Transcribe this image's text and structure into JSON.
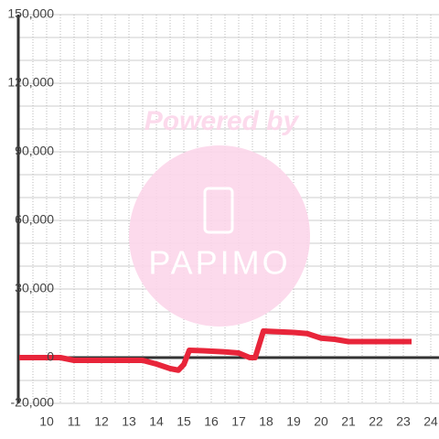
{
  "chart_data": {
    "type": "line",
    "watermark": {
      "heading": "Powered by",
      "logo_text": "PAPIMO"
    },
    "x": [
      9,
      10.5,
      11,
      13.5,
      14,
      14.5,
      14.8,
      15,
      15.2,
      15.7,
      16.5,
      17,
      17.4,
      17.6,
      17.9,
      19,
      19.5,
      20,
      20.5,
      21,
      23.3
    ],
    "series": [
      {
        "color": "#e8253a",
        "values": [
          0,
          0,
          -1200,
          -1200,
          -2800,
          -4800,
          -5500,
          -3000,
          3200,
          3000,
          2500,
          2000,
          0,
          0,
          11600,
          11000,
          10500,
          8500,
          8000,
          7000,
          7000
        ]
      }
    ],
    "xlim": [
      9,
      24.3
    ],
    "ylim": [
      -20000,
      150000
    ],
    "xticks": [
      10,
      11,
      12,
      13,
      14,
      15,
      16,
      17,
      18,
      19,
      20,
      21,
      22,
      23,
      24
    ],
    "yticks": [
      {
        "value": -20000,
        "label": "-20,000"
      },
      0,
      {
        "value": 30000,
        "label": "30,000"
      },
      {
        "value": 60000,
        "label": "60,000"
      },
      {
        "value": 90000,
        "label": "90,000"
      },
      {
        "value": 120000,
        "label": "120,000"
      },
      {
        "value": 150000,
        "label": "150,000"
      }
    ],
    "minor_yticks": [
      -10000,
      10000,
      20000,
      40000,
      50000,
      70000,
      80000,
      100000,
      110000,
      130000,
      140000
    ],
    "minor_xticks": [
      9.5,
      10.5,
      11.5,
      12.5,
      13.5,
      14.5,
      15.5,
      16.5,
      17.5,
      18.5,
      19.5,
      20.5,
      21.5,
      22.5,
      23.5
    ],
    "grid": true
  }
}
